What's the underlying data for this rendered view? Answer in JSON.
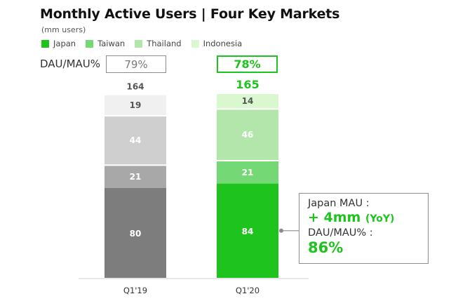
{
  "title": "Monthly Active Users | Four Key Markets",
  "subtitle": "(mm users)",
  "legend": [
    {
      "label": "Japan",
      "color": "#1ec31e"
    },
    {
      "label": "Taiwan",
      "color": "#74d874"
    },
    {
      "label": "Thailand",
      "color": "#b2e6ab"
    },
    {
      "label": "Indonesia",
      "color": "#d9f8d0"
    }
  ],
  "dau_mau": {
    "label": "DAU/MAU%",
    "values": [
      "79%",
      "78%"
    ]
  },
  "callout": {
    "line1": "Japan MAU :",
    "line2": "+ 4mm",
    "line2_suffix": "(YoY)",
    "line3": "DAU/MAU% :",
    "line4": "86%"
  },
  "chart_data": {
    "type": "bar",
    "stacked": true,
    "categories": [
      "Q1'19",
      "Q1'20"
    ],
    "series": [
      {
        "name": "Japan",
        "values": [
          80,
          84
        ]
      },
      {
        "name": "Taiwan",
        "values": [
          21,
          21
        ]
      },
      {
        "name": "Thailand",
        "values": [
          44,
          46
        ]
      },
      {
        "name": "Indonesia",
        "values": [
          19,
          14
        ]
      }
    ],
    "totals": [
      164,
      165
    ],
    "bar_colors": [
      [
        "#7d7d7d",
        "#a8a8a8",
        "#d0cfcf",
        "#f0f0f0"
      ],
      [
        "#1ec31e",
        "#74d874",
        "#b2e6ab",
        "#d9f8d0"
      ]
    ],
    "segment_label_colors": [
      [
        "#ffffff",
        "#ffffff",
        "#ffffff",
        "#555555"
      ],
      [
        "#ffffff",
        "#ffffff",
        "#ffffff",
        "#555555"
      ]
    ],
    "total_label_colors": [
      "#555555",
      "#1ec31e"
    ],
    "title": "Monthly Active Users | Four Key Markets",
    "ylim": [
      0,
      165
    ]
  }
}
